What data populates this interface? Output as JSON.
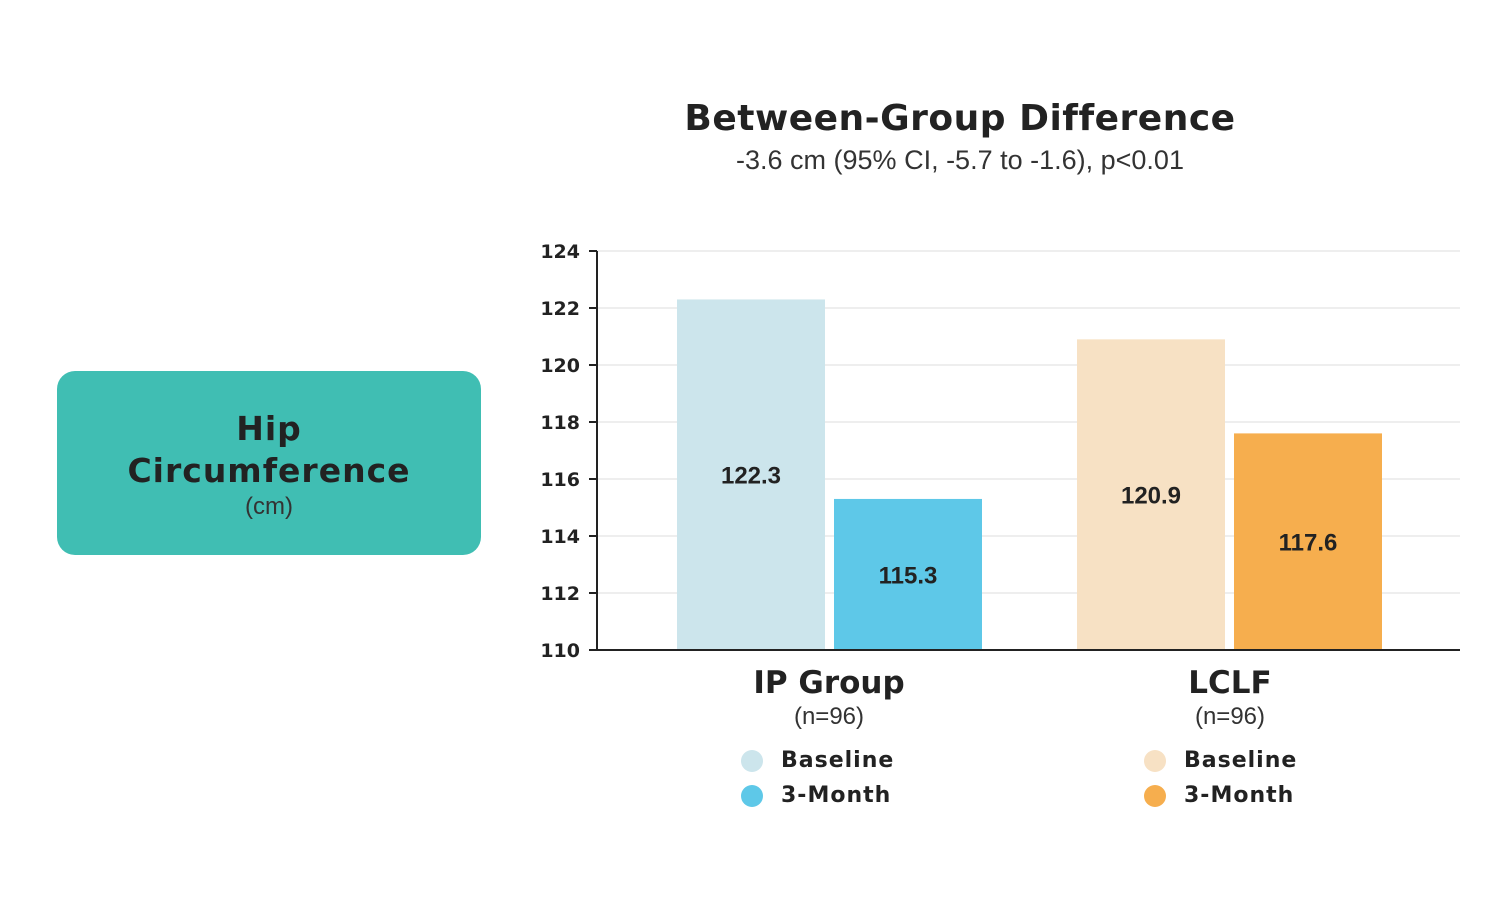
{
  "metric": {
    "title_line1": "Hip",
    "title_line2": "Circumference",
    "unit": "(cm)",
    "color": "#40BEB3"
  },
  "chart_data": {
    "type": "bar",
    "title": "Between-Group Difference",
    "subtitle": "-3.6 cm (95% CI, -5.7 to -1.6), p<0.01",
    "categories": [
      "IP Group",
      "LCLF"
    ],
    "category_n": [
      "(n=96)",
      "(n=96)"
    ],
    "ylim": [
      110,
      124
    ],
    "yticks": [
      "110",
      "112",
      "114",
      "116",
      "118",
      "120",
      "122",
      "124"
    ],
    "grid": true,
    "series": [
      {
        "name": "Baseline",
        "values": [
          122.3,
          120.9
        ],
        "colors": [
          "#CCE5EC",
          "#F7E1C4"
        ],
        "labels": [
          "122.3",
          "120.9"
        ]
      },
      {
        "name": "3-Month",
        "values": [
          115.3,
          117.6
        ],
        "colors": [
          "#5EC8E8",
          "#F6AE4E"
        ],
        "labels": [
          "115.3",
          "117.6"
        ]
      }
    ]
  },
  "legends": [
    {
      "items": [
        {
          "label": "Baseline",
          "color": "#CCE5EC"
        },
        {
          "label": "3-Month",
          "color": "#5EC8E8"
        }
      ]
    },
    {
      "items": [
        {
          "label": "Baseline",
          "color": "#F7E1C4"
        },
        {
          "label": "3-Month",
          "color": "#F6AE4E"
        }
      ]
    }
  ]
}
